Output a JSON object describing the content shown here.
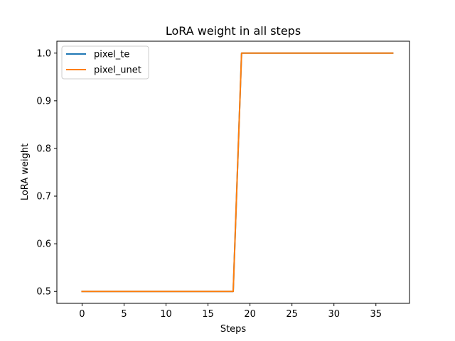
{
  "chart_data": {
    "type": "line",
    "title": "LoRA weight in all steps",
    "xlabel": "Steps",
    "ylabel": "LoRA weight",
    "xlim": [
      -3,
      39
    ],
    "ylim": [
      0.475,
      1.025
    ],
    "xticks": [
      0,
      5,
      10,
      15,
      20,
      25,
      30,
      35
    ],
    "yticks": [
      0.5,
      0.6,
      0.7,
      0.8,
      0.9,
      1.0
    ],
    "ytick_labels": [
      "0.5",
      "0.6",
      "0.7",
      "0.8",
      "0.9",
      "1.0"
    ],
    "grid": false,
    "legend_position": "upper-left",
    "x": [
      0,
      1,
      2,
      3,
      4,
      5,
      6,
      7,
      8,
      9,
      10,
      11,
      12,
      13,
      14,
      15,
      16,
      17,
      18,
      19,
      20,
      21,
      22,
      23,
      24,
      25,
      26,
      27,
      28,
      29,
      30,
      31,
      32,
      33,
      34,
      35,
      36,
      37
    ],
    "series": [
      {
        "name": "pixel_te",
        "color": "#1f77b4",
        "values": [
          0.5,
          0.5,
          0.5,
          0.5,
          0.5,
          0.5,
          0.5,
          0.5,
          0.5,
          0.5,
          0.5,
          0.5,
          0.5,
          0.5,
          0.5,
          0.5,
          0.5,
          0.5,
          0.5,
          1.0,
          1.0,
          1.0,
          1.0,
          1.0,
          1.0,
          1.0,
          1.0,
          1.0,
          1.0,
          1.0,
          1.0,
          1.0,
          1.0,
          1.0,
          1.0,
          1.0,
          1.0,
          1.0
        ]
      },
      {
        "name": "pixel_unet",
        "color": "#ff7f0e",
        "values": [
          0.5,
          0.5,
          0.5,
          0.5,
          0.5,
          0.5,
          0.5,
          0.5,
          0.5,
          0.5,
          0.5,
          0.5,
          0.5,
          0.5,
          0.5,
          0.5,
          0.5,
          0.5,
          0.5,
          1.0,
          1.0,
          1.0,
          1.0,
          1.0,
          1.0,
          1.0,
          1.0,
          1.0,
          1.0,
          1.0,
          1.0,
          1.0,
          1.0,
          1.0,
          1.0,
          1.0,
          1.0,
          1.0
        ]
      }
    ]
  }
}
